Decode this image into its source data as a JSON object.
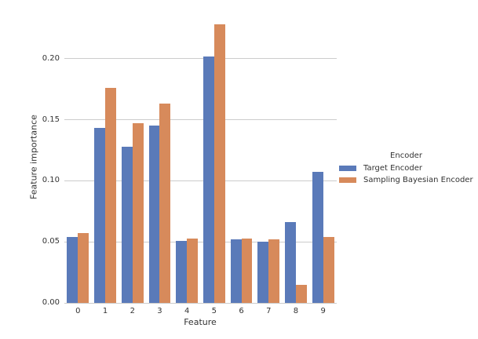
{
  "figure": {
    "background": "#ffffff",
    "grid_color": "#cccccc",
    "text_color": "#333333"
  },
  "chart_data": {
    "type": "bar",
    "title": "",
    "xlabel": "Feature",
    "ylabel": "Feature importance",
    "categories": [
      "0",
      "1",
      "2",
      "3",
      "4",
      "5",
      "6",
      "7",
      "8",
      "9"
    ],
    "series": [
      {
        "name": "Target Encoder",
        "color": "#5a7ab9",
        "values": [
          0.054,
          0.143,
          0.128,
          0.145,
          0.051,
          0.202,
          0.052,
          0.05,
          0.066,
          0.107
        ]
      },
      {
        "name": "Sampling Bayesian Encoder",
        "color": "#d78a5b",
        "values": [
          0.057,
          0.176,
          0.147,
          0.163,
          0.053,
          0.228,
          0.053,
          0.052,
          0.015,
          0.054
        ]
      }
    ],
    "ylim": [
      0,
      0.239
    ],
    "yticks": [
      {
        "label": "0.00",
        "value": 0.0
      },
      {
        "label": "0.05",
        "value": 0.05
      },
      {
        "label": "0.10",
        "value": 0.1
      },
      {
        "label": "0.15",
        "value": 0.15
      },
      {
        "label": "0.20",
        "value": 0.2
      }
    ],
    "grid": "horizontal",
    "legend": {
      "title": "Encoder",
      "position": "right-outside"
    }
  }
}
